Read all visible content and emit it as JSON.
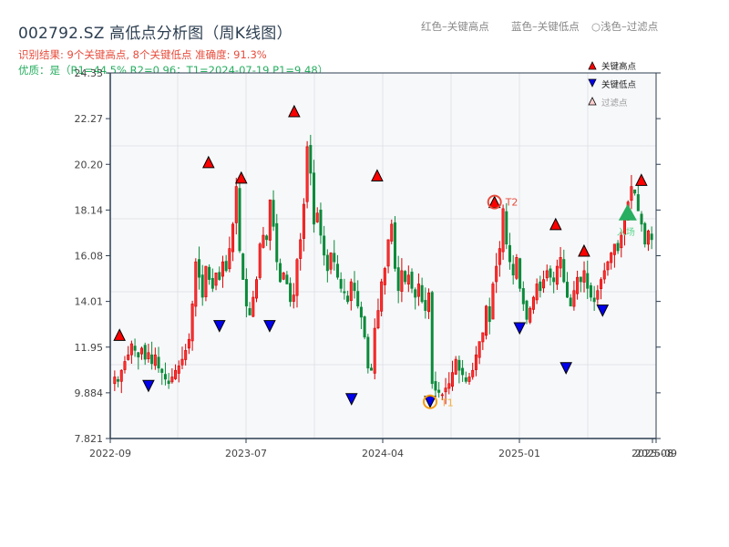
{
  "header": {
    "title": "002792.SZ 高低点分析图（周K线图）",
    "result_line": "识别结果: 9个关键高点, 8个关键低点   准确度: 91.3%",
    "quality_line": "优质：是（R1=44.5%  R2=0.96；T1=2024-07-19 P1=9.48）"
  },
  "top_legend": {
    "red": "红色–关键高点",
    "blue": "蓝色–关键低点",
    "light": "○浅色–过滤点"
  },
  "colors": {
    "up": "#d40000",
    "down": "#0a8a3a",
    "high_marker": "#ff0000",
    "low_marker": "#0000ee",
    "t1": "#f39c12",
    "t2": "#e74c3c",
    "entry": "#2ecc71",
    "axis": "#2c3e50",
    "grid": "#e0e3e8",
    "plot_bg": "#f7f8fa"
  },
  "chart_data": {
    "type": "candlestick",
    "title": "002792.SZ 高低点分析图（周K线图）",
    "xlabel": "",
    "ylabel": "",
    "ylim": [
      7.821,
      24.33
    ],
    "yticks": [
      "24.33",
      "22.27",
      "20.20",
      "18.14",
      "16.08",
      "14.01",
      "11.95",
      "9.884",
      "7.821"
    ],
    "xticks": [
      "2022-09",
      "2023-07",
      "2024-04",
      "2025-01",
      "2025-08",
      "2025-09"
    ],
    "grid": true,
    "legend": {
      "position": "upper right",
      "entries": [
        "关键高点",
        "关键低点",
        "过滤点"
      ]
    },
    "key_highs": [
      {
        "x": 0.017,
        "value": 12.5
      },
      {
        "x": 0.18,
        "value": 20.3
      },
      {
        "x": 0.24,
        "value": 19.6
      },
      {
        "x": 0.337,
        "value": 22.6
      },
      {
        "x": 0.489,
        "value": 19.7
      },
      {
        "x": 0.704,
        "value": 18.5,
        "label": "T2"
      },
      {
        "x": 0.816,
        "value": 17.5
      },
      {
        "x": 0.868,
        "value": 16.3
      },
      {
        "x": 0.973,
        "value": 19.5
      }
    ],
    "key_lows": [
      {
        "x": 0.07,
        "value": 10.2
      },
      {
        "x": 0.2,
        "value": 12.9
      },
      {
        "x": 0.292,
        "value": 12.9
      },
      {
        "x": 0.442,
        "value": 9.6
      },
      {
        "x": 0.586,
        "value": 9.48,
        "label": "T1"
      },
      {
        "x": 0.75,
        "value": 12.8
      },
      {
        "x": 0.835,
        "value": 11.0
      },
      {
        "x": 0.902,
        "value": 13.6
      }
    ],
    "annotations": [
      {
        "text": "T1",
        "date": "2024-07-19",
        "value": 9.48
      },
      {
        "text": "T2",
        "value": 18.5
      },
      {
        "text": "入场",
        "value": 18.0,
        "x": 0.948
      }
    ],
    "closes": [
      10.6,
      10.4,
      10.9,
      11.3,
      11.6,
      12.1,
      11.8,
      11.5,
      11.9,
      11.4,
      11.7,
      11.2,
      11.6,
      11.0,
      10.8,
      10.5,
      10.3,
      10.6,
      10.9,
      11.1,
      11.4,
      11.8,
      12.3,
      13.9,
      15.8,
      15.1,
      14.2,
      15.6,
      15.0,
      14.6,
      15.3,
      15.0,
      15.8,
      15.4,
      16.4,
      17.5,
      19.2,
      16.3,
      15.0,
      13.8,
      13.4,
      14.2,
      15.0,
      16.6,
      17.0,
      16.8,
      18.6,
      17.4,
      15.8,
      14.9,
      15.3,
      14.8,
      14.0,
      14.3,
      15.9,
      16.8,
      18.4,
      21.0,
      19.8,
      17.5,
      18.0,
      17.0,
      16.1,
      15.4,
      16.2,
      15.8,
      15.1,
      14.6,
      14.4,
      14.0,
      14.9,
      14.5,
      13.8,
      13.3,
      12.4,
      11.0,
      10.9,
      12.8,
      13.6,
      14.9,
      15.5,
      16.8,
      17.5,
      15.5,
      14.5,
      15.4,
      14.9,
      15.2,
      14.6,
      14.2,
      14.8,
      14.0,
      13.6,
      14.4,
      10.3,
      10.0,
      9.9,
      9.8,
      10.1,
      10.3,
      10.8,
      11.4,
      10.9,
      10.7,
      10.4,
      10.6,
      10.9,
      11.6,
      12.2,
      12.6,
      13.8,
      13.1,
      14.8,
      15.6,
      16.4,
      18.2,
      16.6,
      15.8,
      15.2,
      16.0,
      14.6,
      13.9,
      13.2,
      13.7,
      14.2,
      14.8,
      14.5,
      15.0,
      15.4,
      15.1,
      14.9,
      15.6,
      16.0,
      14.9,
      14.2,
      13.8,
      14.5,
      15.1,
      14.9,
      15.4,
      14.6,
      14.2,
      14.0,
      14.5,
      15.0,
      15.4,
      15.8,
      16.2,
      16.6,
      16.3,
      17.0,
      17.8,
      18.5,
      19.2,
      18.9,
      18.1,
      17.5,
      16.6,
      17.2,
      16.8
    ],
    "date_range": [
      "2022-09",
      "2025-09"
    ]
  }
}
